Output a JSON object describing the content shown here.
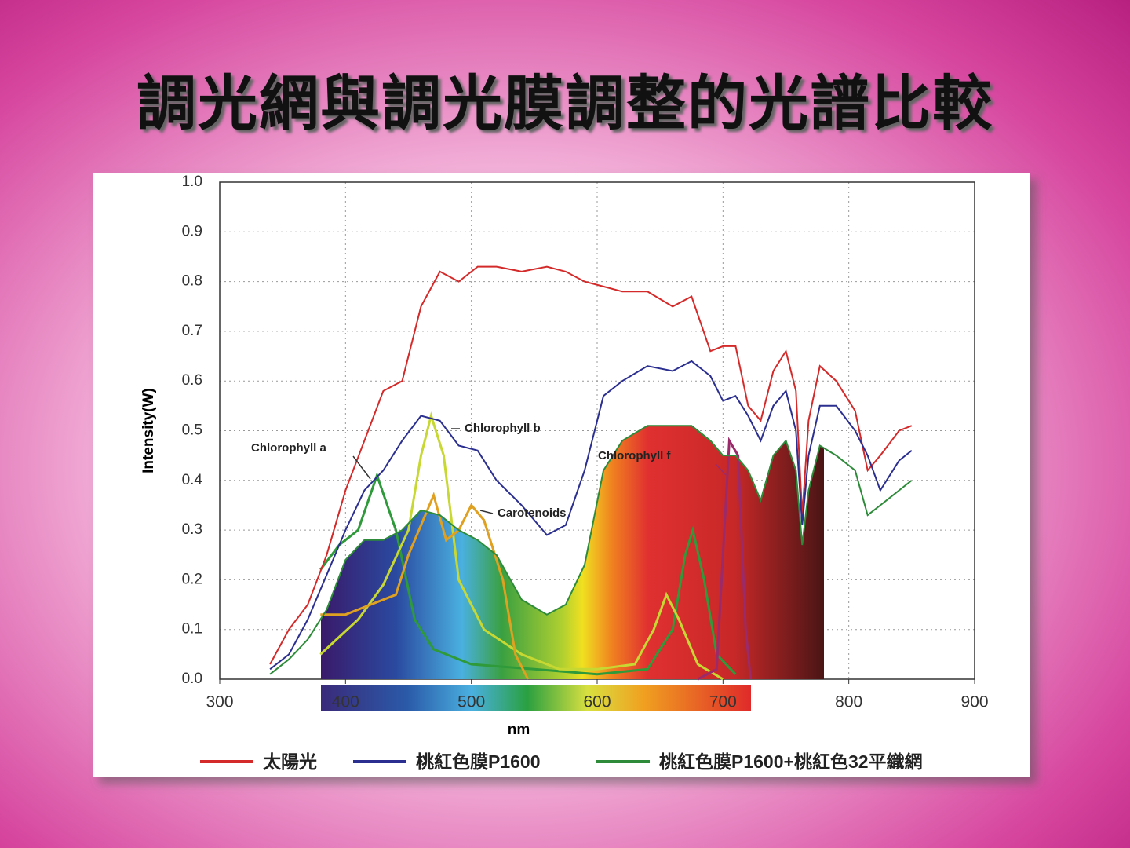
{
  "chart_data": {
    "type": "line",
    "title": "調光網與調光膜調整的光譜比較",
    "y_label": "Intensity(W)",
    "x_label": "nm",
    "xlim": [
      300,
      900
    ],
    "ylim": [
      0,
      1
    ],
    "xticks": [
      300,
      400,
      500,
      600,
      700,
      800,
      900
    ],
    "yticks": [
      {
        "value": 0,
        "label": "0.0"
      },
      0.1,
      0.2,
      0.3,
      0.4,
      0.5,
      0.6,
      0.7,
      0.8,
      0.9,
      {
        "value": 1,
        "label": "1.0"
      }
    ],
    "grid": true,
    "legend": "bottom",
    "x": [
      340,
      355,
      370,
      385,
      400,
      415,
      430,
      445,
      460,
      475,
      490,
      505,
      520,
      540,
      560,
      575,
      590,
      605,
      620,
      640,
      660,
      675,
      690,
      700,
      710,
      720,
      730,
      740,
      750,
      758,
      763,
      768,
      777,
      790,
      805,
      815,
      825,
      840,
      850
    ],
    "series": [
      {
        "name": "太陽光",
        "color": "#d42a2a",
        "values": [
          0.03,
          0.1,
          0.15,
          0.25,
          0.38,
          0.48,
          0.58,
          0.6,
          0.75,
          0.82,
          0.8,
          0.83,
          0.83,
          0.82,
          0.83,
          0.82,
          0.8,
          0.79,
          0.78,
          0.78,
          0.75,
          0.77,
          0.66,
          0.67,
          0.67,
          0.55,
          0.52,
          0.62,
          0.66,
          0.58,
          0.33,
          0.52,
          0.63,
          0.6,
          0.54,
          0.42,
          0.45,
          0.5,
          0.51
        ]
      },
      {
        "name": "桃紅色膜P1600",
        "color": "#2b2f8f",
        "values": [
          0.02,
          0.05,
          0.12,
          0.21,
          0.3,
          0.38,
          0.42,
          0.48,
          0.53,
          0.52,
          0.47,
          0.46,
          0.4,
          0.35,
          0.29,
          0.31,
          0.42,
          0.57,
          0.6,
          0.63,
          0.62,
          0.64,
          0.61,
          0.56,
          0.57,
          0.53,
          0.48,
          0.55,
          0.58,
          0.5,
          0.31,
          0.45,
          0.55,
          0.55,
          0.5,
          0.45,
          0.38,
          0.44,
          0.46
        ]
      },
      {
        "name": "桃紅色膜P1600+桃紅色32平織網",
        "color": "#2e8b3a",
        "values": [
          0.01,
          0.04,
          0.08,
          0.14,
          0.24,
          0.28,
          0.28,
          0.3,
          0.34,
          0.33,
          0.3,
          0.28,
          0.25,
          0.16,
          0.13,
          0.15,
          0.23,
          0.42,
          0.48,
          0.51,
          0.51,
          0.51,
          0.48,
          0.45,
          0.45,
          0.42,
          0.36,
          0.45,
          0.48,
          0.42,
          0.27,
          0.38,
          0.47,
          0.45,
          0.42,
          0.33,
          0.35,
          0.38,
          0.4
        ]
      }
    ],
    "reference_curves": [
      {
        "name": "Chlorophyll a",
        "color": "#2e9a3a",
        "x": [
          380,
          395,
          410,
          425,
          440,
          455,
          470,
          500,
          550,
          600,
          640,
          660,
          670,
          676,
          685,
          695,
          710
        ],
        "values": [
          0.22,
          0.27,
          0.3,
          0.41,
          0.3,
          0.12,
          0.06,
          0.03,
          0.02,
          0.01,
          0.02,
          0.1,
          0.25,
          0.3,
          0.2,
          0.05,
          0.01
        ]
      },
      {
        "name": "Chlorophyll b",
        "color": "#c8d832",
        "x": [
          380,
          410,
          430,
          450,
          460,
          468,
          478,
          490,
          510,
          540,
          570,
          600,
          630,
          645,
          655,
          665,
          680,
          700
        ],
        "values": [
          0.05,
          0.12,
          0.19,
          0.3,
          0.45,
          0.53,
          0.45,
          0.2,
          0.1,
          0.05,
          0.02,
          0.02,
          0.03,
          0.1,
          0.17,
          0.12,
          0.03,
          0.0
        ]
      },
      {
        "name": "Carotenoids",
        "color": "#e0a020",
        "x": [
          380,
          400,
          420,
          440,
          450,
          470,
          480,
          490,
          500,
          510,
          525,
          535,
          545
        ],
        "values": [
          0.13,
          0.13,
          0.15,
          0.17,
          0.25,
          0.37,
          0.28,
          0.3,
          0.35,
          0.32,
          0.2,
          0.05,
          0.0
        ]
      },
      {
        "name": "Chlorophyll f",
        "color": "#9a2a6a",
        "x": [
          680,
          695,
          700,
          705,
          712,
          718,
          722
        ],
        "values": [
          0.0,
          0.02,
          0.25,
          0.48,
          0.45,
          0.1,
          0.0
        ]
      }
    ]
  }
}
